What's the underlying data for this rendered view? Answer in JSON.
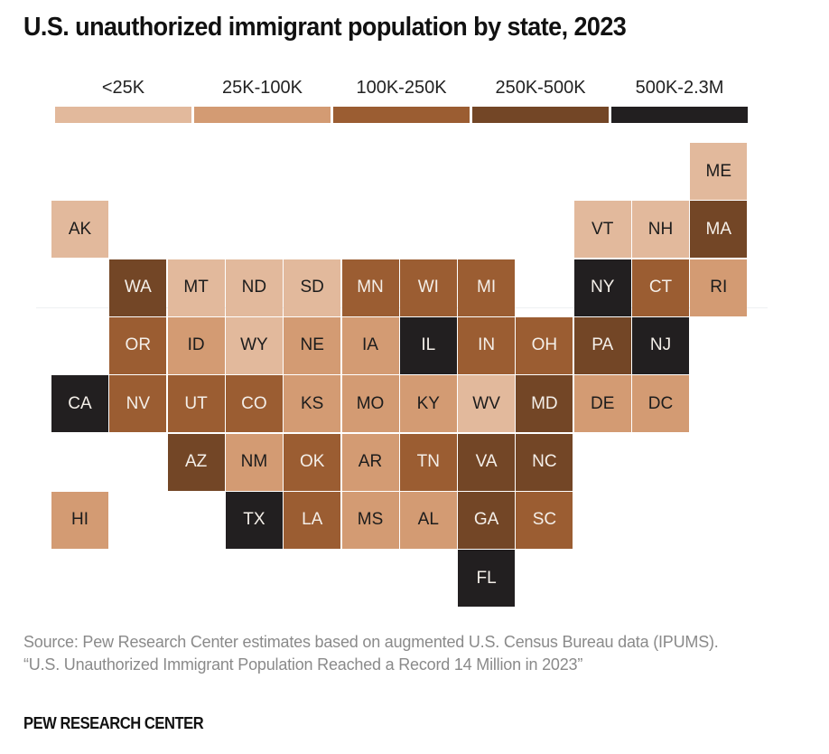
{
  "chart_data": {
    "type": "heatmap",
    "subtype": "tile-grid-map",
    "title": "U.S. unauthorized immigrant population by state, 2023",
    "legend": {
      "placement": "top",
      "bins": [
        {
          "label": "<25K",
          "color": "#e2b99c"
        },
        {
          "label": "25K-100K",
          "color": "#d39b73"
        },
        {
          "label": "100K-250K",
          "color": "#9b5d32"
        },
        {
          "label": "250K-500K",
          "color": "#734626"
        },
        {
          "label": "500K-2.3M",
          "color": "#221f20"
        }
      ]
    },
    "tiles": [
      {
        "state": "ME",
        "col": 11,
        "row": 0,
        "bin": 0
      },
      {
        "state": "AK",
        "col": 0,
        "row": 1,
        "bin": 0
      },
      {
        "state": "VT",
        "col": 9,
        "row": 1,
        "bin": 0
      },
      {
        "state": "NH",
        "col": 10,
        "row": 1,
        "bin": 0
      },
      {
        "state": "MA",
        "col": 11,
        "row": 1,
        "bin": 3
      },
      {
        "state": "WA",
        "col": 1,
        "row": 2,
        "bin": 3
      },
      {
        "state": "MT",
        "col": 2,
        "row": 2,
        "bin": 0
      },
      {
        "state": "ND",
        "col": 3,
        "row": 2,
        "bin": 0
      },
      {
        "state": "SD",
        "col": 4,
        "row": 2,
        "bin": 0
      },
      {
        "state": "MN",
        "col": 5,
        "row": 2,
        "bin": 2
      },
      {
        "state": "WI",
        "col": 6,
        "row": 2,
        "bin": 2
      },
      {
        "state": "MI",
        "col": 7,
        "row": 2,
        "bin": 2
      },
      {
        "state": "NY",
        "col": 9,
        "row": 2,
        "bin": 4
      },
      {
        "state": "CT",
        "col": 10,
        "row": 2,
        "bin": 2
      },
      {
        "state": "RI",
        "col": 11,
        "row": 2,
        "bin": 1
      },
      {
        "state": "OR",
        "col": 1,
        "row": 3,
        "bin": 2
      },
      {
        "state": "ID",
        "col": 2,
        "row": 3,
        "bin": 1
      },
      {
        "state": "WY",
        "col": 3,
        "row": 3,
        "bin": 0
      },
      {
        "state": "NE",
        "col": 4,
        "row": 3,
        "bin": 1
      },
      {
        "state": "IA",
        "col": 5,
        "row": 3,
        "bin": 1
      },
      {
        "state": "IL",
        "col": 6,
        "row": 3,
        "bin": 4
      },
      {
        "state": "IN",
        "col": 7,
        "row": 3,
        "bin": 2
      },
      {
        "state": "OH",
        "col": 8,
        "row": 3,
        "bin": 2
      },
      {
        "state": "PA",
        "col": 9,
        "row": 3,
        "bin": 3
      },
      {
        "state": "NJ",
        "col": 10,
        "row": 3,
        "bin": 4
      },
      {
        "state": "CA",
        "col": 0,
        "row": 4,
        "bin": 4
      },
      {
        "state": "NV",
        "col": 1,
        "row": 4,
        "bin": 2
      },
      {
        "state": "UT",
        "col": 2,
        "row": 4,
        "bin": 2
      },
      {
        "state": "CO",
        "col": 3,
        "row": 4,
        "bin": 2
      },
      {
        "state": "KS",
        "col": 4,
        "row": 4,
        "bin": 1
      },
      {
        "state": "MO",
        "col": 5,
        "row": 4,
        "bin": 1
      },
      {
        "state": "KY",
        "col": 6,
        "row": 4,
        "bin": 1
      },
      {
        "state": "WV",
        "col": 7,
        "row": 4,
        "bin": 0
      },
      {
        "state": "MD",
        "col": 8,
        "row": 4,
        "bin": 3
      },
      {
        "state": "DE",
        "col": 9,
        "row": 4,
        "bin": 1
      },
      {
        "state": "DC",
        "col": 10,
        "row": 4,
        "bin": 1
      },
      {
        "state": "AZ",
        "col": 2,
        "row": 5,
        "bin": 3
      },
      {
        "state": "NM",
        "col": 3,
        "row": 5,
        "bin": 1
      },
      {
        "state": "OK",
        "col": 4,
        "row": 5,
        "bin": 2
      },
      {
        "state": "AR",
        "col": 5,
        "row": 5,
        "bin": 1
      },
      {
        "state": "TN",
        "col": 6,
        "row": 5,
        "bin": 2
      },
      {
        "state": "VA",
        "col": 7,
        "row": 5,
        "bin": 3
      },
      {
        "state": "NC",
        "col": 8,
        "row": 5,
        "bin": 3
      },
      {
        "state": "HI",
        "col": 0,
        "row": 6,
        "bin": 1
      },
      {
        "state": "TX",
        "col": 3,
        "row": 6,
        "bin": 4
      },
      {
        "state": "LA",
        "col": 4,
        "row": 6,
        "bin": 2
      },
      {
        "state": "MS",
        "col": 5,
        "row": 6,
        "bin": 1
      },
      {
        "state": "AL",
        "col": 6,
        "row": 6,
        "bin": 1
      },
      {
        "state": "GA",
        "col": 7,
        "row": 6,
        "bin": 3
      },
      {
        "state": "SC",
        "col": 8,
        "row": 6,
        "bin": 2
      },
      {
        "state": "FL",
        "col": 7,
        "row": 7,
        "bin": 4
      }
    ]
  },
  "footer": {
    "source_line": "Source: Pew Research Center estimates based on augmented U.S. Census Bureau data (IPUMS).",
    "report_title": "“U.S. Unauthorized Immigrant Population Reached a Record 14 Million in 2023”",
    "brand": "PEW RESEARCH CENTER"
  }
}
